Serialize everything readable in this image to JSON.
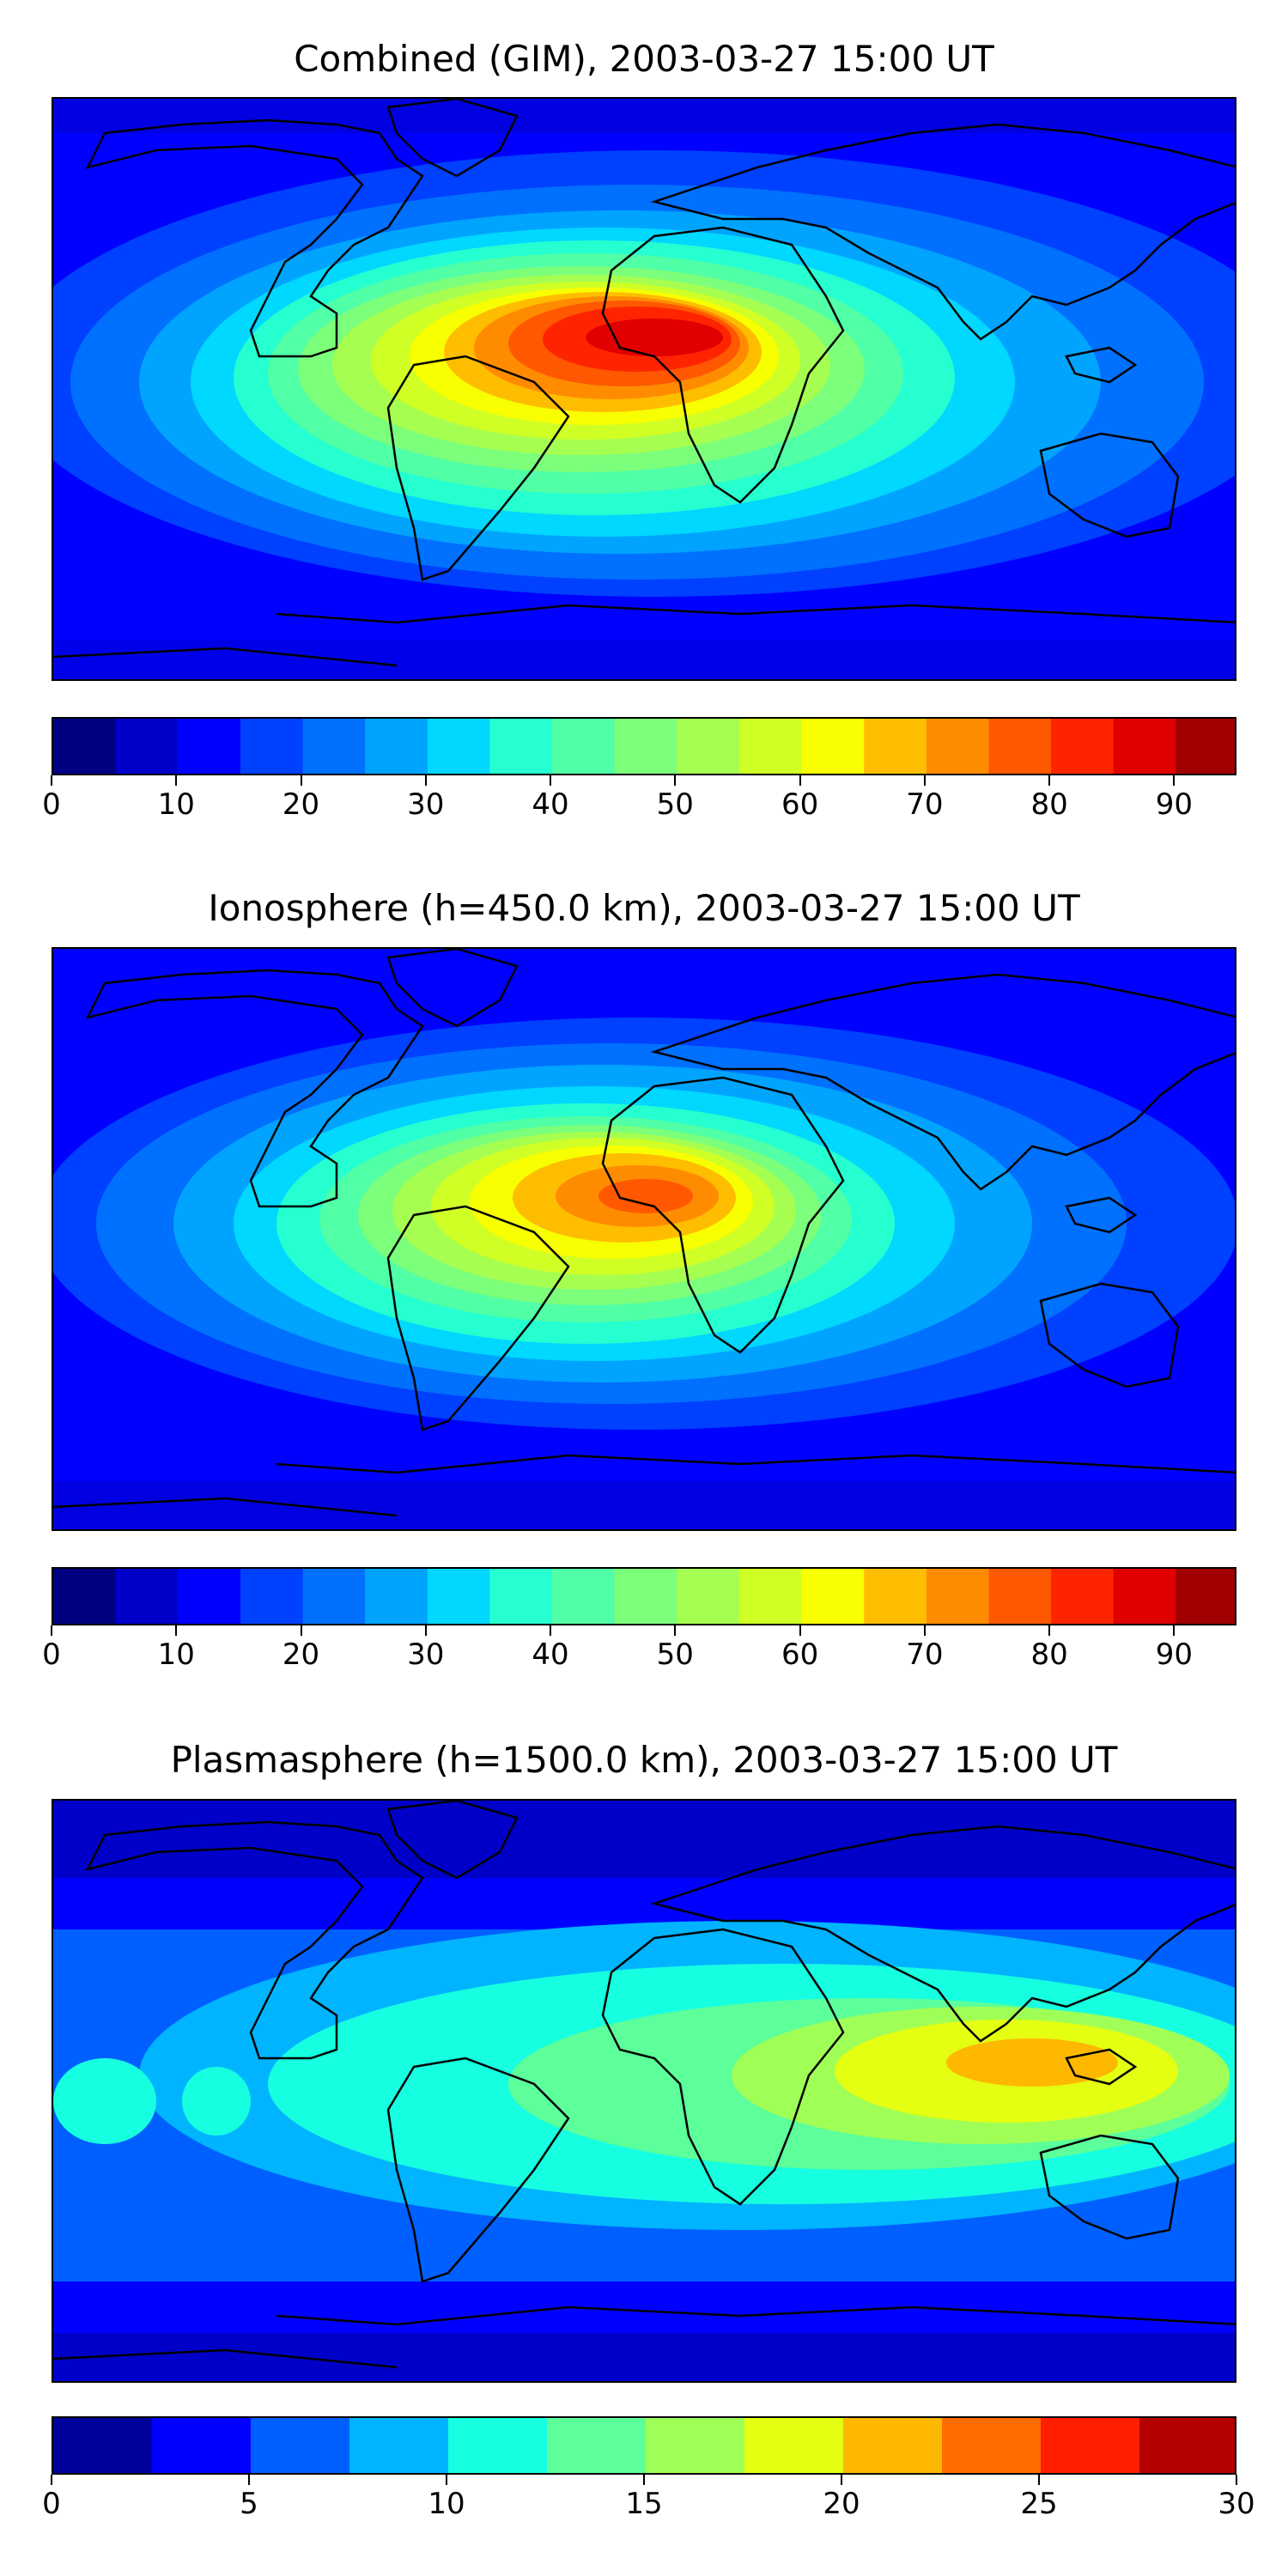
{
  "panels": [
    {
      "title": "Combined (GIM), 2003-03-27 15:00 UT",
      "colorbar": {
        "levels_min": 0,
        "levels_max": 95,
        "step": 5,
        "ticks": [
          "0",
          "10",
          "20",
          "30",
          "40",
          "50",
          "60",
          "70",
          "80",
          "90"
        ],
        "tick_values": [
          0,
          10,
          20,
          30,
          40,
          50,
          60,
          70,
          80,
          90
        ]
      },
      "field_peak": "~90 over central Africa",
      "contour_levels": [
        0,
        5,
        10,
        15,
        20,
        25,
        30,
        35,
        40,
        45,
        50,
        55,
        60,
        65,
        70,
        75,
        80,
        85,
        90,
        95
      ]
    },
    {
      "title": "Ionosphere  (h=450.0 km), 2003-03-27 15:00 UT",
      "colorbar": {
        "levels_min": 0,
        "levels_max": 95,
        "step": 5,
        "ticks": [
          "0",
          "10",
          "20",
          "30",
          "40",
          "50",
          "60",
          "70",
          "80",
          "90"
        ],
        "tick_values": [
          0,
          10,
          20,
          30,
          40,
          50,
          60,
          70,
          80,
          90
        ]
      },
      "contour_levels": [
        0,
        5,
        10,
        15,
        20,
        25,
        30,
        35,
        40,
        45,
        50,
        55,
        60,
        65,
        70,
        75,
        80,
        85,
        90,
        95
      ]
    },
    {
      "title": "Plasmasphere (h=1500.0 km), 2003-03-27 15:00 UT",
      "colorbar": {
        "levels_min": 0,
        "levels_max": 30,
        "step": 2.5,
        "ticks": [
          "0",
          "5",
          "10",
          "15",
          "20",
          "25",
          "30"
        ],
        "tick_values": [
          0,
          5,
          10,
          15,
          20,
          25,
          30
        ]
      },
      "contour_levels": [
        0,
        2.5,
        5,
        7.5,
        10,
        12.5,
        15,
        17.5,
        20,
        22.5,
        25,
        27.5,
        30
      ]
    }
  ],
  "colormap": "jet",
  "colors": {
    "cmap20": [
      "#000080",
      "#0000c8",
      "#0000ff",
      "#0040ff",
      "#0070ff",
      "#00a4ff",
      "#00d8ff",
      "#26ffd0",
      "#50ffa6",
      "#7cff7a",
      "#a6ff50",
      "#d0ff26",
      "#f8ff00",
      "#ffbd00",
      "#ff8c00",
      "#ff5800",
      "#ff2400",
      "#e00000",
      "#a00000"
    ],
    "cmap12": [
      "#00009a",
      "#0000ff",
      "#0060ff",
      "#00b4ff",
      "#16ffe0",
      "#5cff9a",
      "#a0ff56",
      "#e4ff12",
      "#ffb800",
      "#ff6c00",
      "#ff1e00",
      "#b40000"
    ]
  }
}
